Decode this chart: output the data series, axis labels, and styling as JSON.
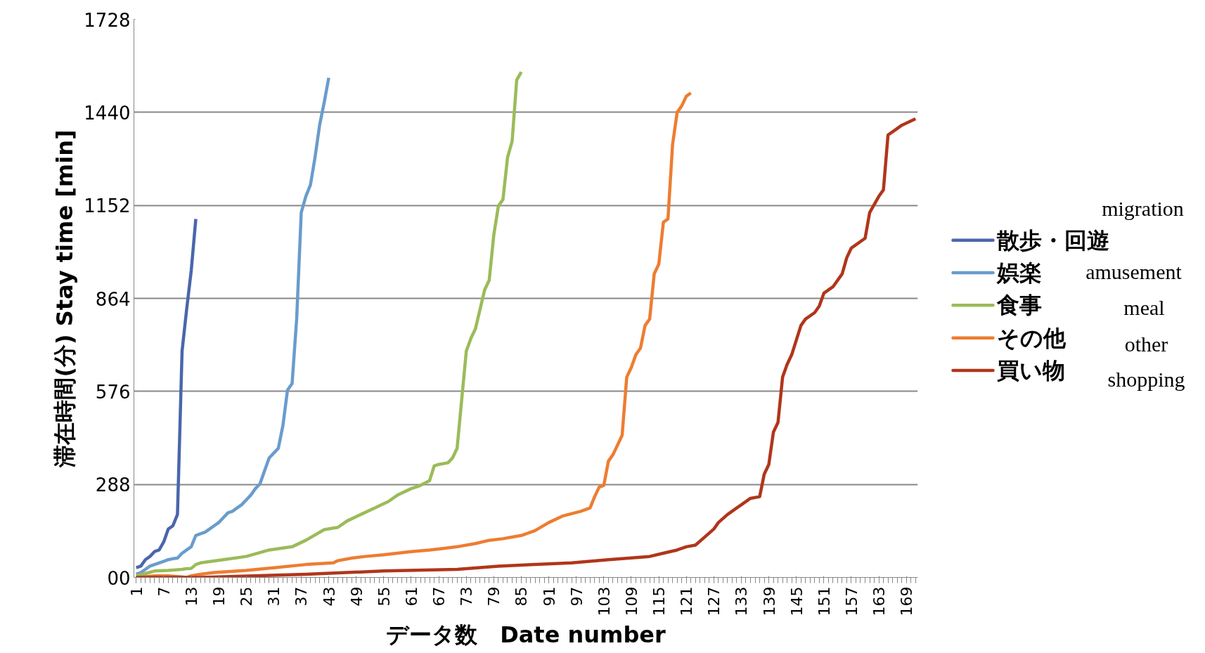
{
  "chart_data": {
    "type": "line",
    "xlabel": "データ数　Date number",
    "ylabel": "滞在時間(分) Stay time [min]",
    "xlim": [
      0.5,
      171.5
    ],
    "xticks": [
      1,
      7,
      13,
      19,
      25,
      31,
      37,
      43,
      49,
      55,
      61,
      67,
      73,
      79,
      85,
      91,
      97,
      103,
      109,
      115,
      121,
      127,
      133,
      139,
      145,
      151,
      157,
      163,
      169
    ],
    "ylim": [
      0,
      1728
    ],
    "yticks": [
      {
        "value": 0,
        "label": "00"
      },
      288,
      576,
      864,
      1152,
      1440,
      1728
    ],
    "grid": "y",
    "legend": "right",
    "line_style": "solid",
    "annotations": [
      "migration",
      "amusement",
      "meal",
      "other",
      "shopping"
    ],
    "series": [
      {
        "name": "散歩・回遊",
        "color": "#4a66ac",
        "x": [
          1,
          2,
          3,
          4,
          5,
          6,
          7,
          8,
          9,
          10,
          11,
          12,
          13,
          14
        ],
        "values": [
          30,
          35,
          55,
          65,
          80,
          85,
          110,
          150,
          160,
          195,
          700,
          830,
          950,
          1110
        ]
      },
      {
        "name": "娯楽",
        "color": "#6a9ccc",
        "x": [
          1,
          2,
          3,
          4,
          5,
          6,
          7,
          8,
          9,
          10,
          11,
          12,
          13,
          14,
          15,
          16,
          17,
          18,
          19,
          20,
          21,
          22,
          23,
          24,
          25,
          26,
          27,
          28,
          29,
          30,
          31,
          32,
          33,
          34,
          35,
          36,
          37,
          38,
          39,
          40,
          41,
          42,
          43
        ],
        "values": [
          10,
          15,
          25,
          35,
          40,
          45,
          50,
          55,
          58,
          60,
          75,
          85,
          95,
          130,
          135,
          140,
          150,
          160,
          170,
          185,
          200,
          205,
          215,
          225,
          240,
          255,
          275,
          290,
          330,
          370,
          385,
          400,
          470,
          580,
          600,
          800,
          1130,
          1180,
          1215,
          1300,
          1400,
          1470,
          1547
        ]
      },
      {
        "name": "食事",
        "color": "#9bbb59",
        "x": [
          1,
          3,
          5,
          8,
          11,
          12,
          13,
          14,
          15,
          20,
          25,
          30,
          35,
          38,
          42,
          45,
          47,
          50,
          53,
          56,
          58,
          61,
          63,
          65,
          66,
          67,
          69,
          70,
          71,
          72,
          73,
          74,
          75,
          76,
          77,
          78,
          79,
          80,
          81,
          82,
          83,
          84,
          85
        ],
        "values": [
          5,
          12,
          20,
          22,
          25,
          27,
          28,
          40,
          45,
          55,
          65,
          85,
          95,
          115,
          148,
          155,
          175,
          195,
          215,
          235,
          255,
          275,
          285,
          300,
          345,
          350,
          355,
          370,
          400,
          550,
          700,
          740,
          770,
          830,
          890,
          920,
          1060,
          1150,
          1170,
          1300,
          1350,
          1540,
          1565
        ]
      },
      {
        "name": "その他",
        "color": "#ed7d31",
        "x": [
          1,
          5,
          8,
          10,
          12,
          13,
          15,
          18,
          25,
          31,
          38,
          44,
          45,
          48,
          51,
          55,
          58,
          61,
          65,
          68,
          71,
          75,
          78,
          81,
          85,
          88,
          91,
          94,
          98,
          100,
          101,
          102,
          103,
          104,
          105,
          106,
          107,
          108,
          109,
          110,
          111,
          112,
          113,
          114,
          115,
          116,
          117,
          118,
          119,
          120,
          121,
          122
        ],
        "values": [
          0,
          5,
          5,
          3,
          0,
          5,
          10,
          15,
          22,
          30,
          40,
          45,
          52,
          60,
          65,
          70,
          75,
          80,
          85,
          90,
          95,
          105,
          115,
          120,
          130,
          145,
          170,
          190,
          205,
          215,
          250,
          280,
          285,
          360,
          380,
          410,
          440,
          620,
          650,
          690,
          710,
          780,
          800,
          940,
          970,
          1100,
          1110,
          1340,
          1440,
          1460,
          1490,
          1500
        ]
      },
      {
        "name": "買い物",
        "color": "#b0361a",
        "x": [
          1,
          15,
          38,
          55,
          71,
          80,
          88,
          96,
          104,
          113,
          116,
          119,
          121,
          123,
          125,
          127,
          128,
          130,
          132,
          133,
          135,
          137,
          138,
          139,
          140,
          141,
          142,
          143,
          144,
          146,
          147,
          149,
          150,
          151,
          153,
          155,
          156,
          157,
          160,
          161,
          163,
          164,
          165,
          167,
          168,
          171
        ],
        "values": [
          0,
          0,
          10,
          20,
          25,
          35,
          40,
          45,
          55,
          65,
          75,
          85,
          95,
          100,
          125,
          150,
          170,
          195,
          215,
          225,
          245,
          250,
          320,
          350,
          450,
          480,
          620,
          660,
          690,
          780,
          800,
          820,
          840,
          880,
          900,
          940,
          990,
          1020,
          1050,
          1130,
          1180,
          1200,
          1370,
          1390,
          1400,
          1420
        ]
      }
    ]
  }
}
